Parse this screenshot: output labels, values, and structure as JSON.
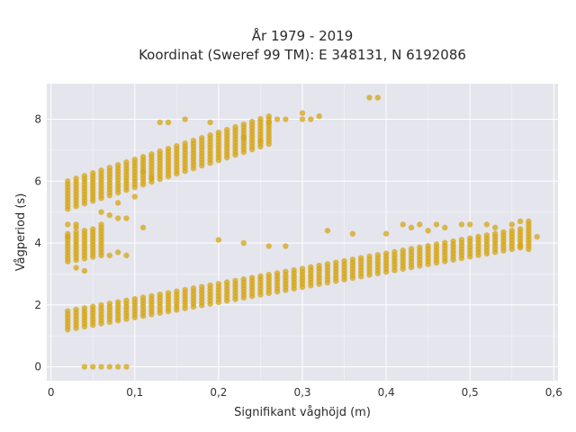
{
  "chart_data": {
    "type": "scatter",
    "title": "År 1979 - 2019",
    "subtitle": "Koordinat (Sweref 99 TM): E 348131, N 6192086",
    "xlabel": "Signifikant våghöjd (m)",
    "ylabel": "Vågperiod (s)",
    "xlim": [
      -0.005,
      0.605
    ],
    "ylim": [
      -0.45,
      9.15
    ],
    "x_ticks": [
      0,
      0.1,
      0.2,
      0.3,
      0.4,
      0.5,
      0.6
    ],
    "x_tick_labels": [
      "0",
      "0,1",
      "0,2",
      "0,3",
      "0,4",
      "0,5",
      "0,6"
    ],
    "y_ticks": [
      0,
      2,
      4,
      6,
      8
    ],
    "y_tick_labels": [
      "0",
      "2",
      "4",
      "6",
      "8"
    ],
    "grid": true,
    "legend": "none",
    "marker_color": "#d4a514",
    "plot_bg": "#e5e5ee",
    "bands": [
      {
        "x_start": 0.02,
        "x_end": 0.57,
        "y_low_start": 1.2,
        "y_low_end": 3.9,
        "y_high_start": 1.8,
        "y_high_end": 4.6
      },
      {
        "x_start": 0.02,
        "x_end": 0.06,
        "y_low_start": 3.4,
        "y_low_end": 3.6,
        "y_high_start": 4.3,
        "y_high_end": 4.6
      },
      {
        "x_start": 0.02,
        "x_end": 0.26,
        "y_low_start": 5.1,
        "y_low_end": 7.2,
        "y_high_start": 6.0,
        "y_high_end": 8.1
      }
    ],
    "points": [
      [
        0.04,
        0
      ],
      [
        0.05,
        0
      ],
      [
        0.06,
        0
      ],
      [
        0.07,
        0
      ],
      [
        0.08,
        0
      ],
      [
        0.09,
        0
      ],
      [
        0.02,
        4.6
      ],
      [
        0.03,
        4.6
      ],
      [
        0.03,
        4.5
      ],
      [
        0.02,
        4.2
      ],
      [
        0.03,
        3.2
      ],
      [
        0.04,
        3.1
      ],
      [
        0.06,
        5.0
      ],
      [
        0.07,
        4.9
      ],
      [
        0.08,
        5.3
      ],
      [
        0.08,
        4.8
      ],
      [
        0.09,
        4.8
      ],
      [
        0.1,
        5.5
      ],
      [
        0.11,
        4.5
      ],
      [
        0.07,
        3.6
      ],
      [
        0.08,
        3.7
      ],
      [
        0.09,
        3.6
      ],
      [
        0.11,
        6.3
      ],
      [
        0.12,
        6.1
      ],
      [
        0.13,
        7.9
      ],
      [
        0.14,
        7.9
      ],
      [
        0.16,
        8.0
      ],
      [
        0.19,
        7.9
      ],
      [
        0.23,
        7.4
      ],
      [
        0.25,
        7.3
      ],
      [
        0.26,
        7.9
      ],
      [
        0.27,
        8.0
      ],
      [
        0.28,
        8.0
      ],
      [
        0.3,
        8.2
      ],
      [
        0.3,
        8.0
      ],
      [
        0.31,
        8.0
      ],
      [
        0.32,
        8.1
      ],
      [
        0.38,
        8.7
      ],
      [
        0.39,
        8.7
      ],
      [
        0.2,
        4.1
      ],
      [
        0.23,
        4.0
      ],
      [
        0.26,
        3.9
      ],
      [
        0.28,
        3.9
      ],
      [
        0.33,
        4.4
      ],
      [
        0.36,
        4.3
      ],
      [
        0.4,
        4.3
      ],
      [
        0.42,
        4.6
      ],
      [
        0.43,
        4.5
      ],
      [
        0.44,
        4.6
      ],
      [
        0.45,
        4.4
      ],
      [
        0.46,
        4.6
      ],
      [
        0.47,
        4.5
      ],
      [
        0.49,
        4.6
      ],
      [
        0.5,
        4.6
      ],
      [
        0.52,
        4.6
      ],
      [
        0.53,
        4.5
      ],
      [
        0.55,
        4.6
      ],
      [
        0.56,
        4.7
      ],
      [
        0.57,
        4.7
      ],
      [
        0.58,
        4.2
      ],
      [
        0.56,
        3.9
      ],
      [
        0.57,
        3.8
      ]
    ]
  }
}
